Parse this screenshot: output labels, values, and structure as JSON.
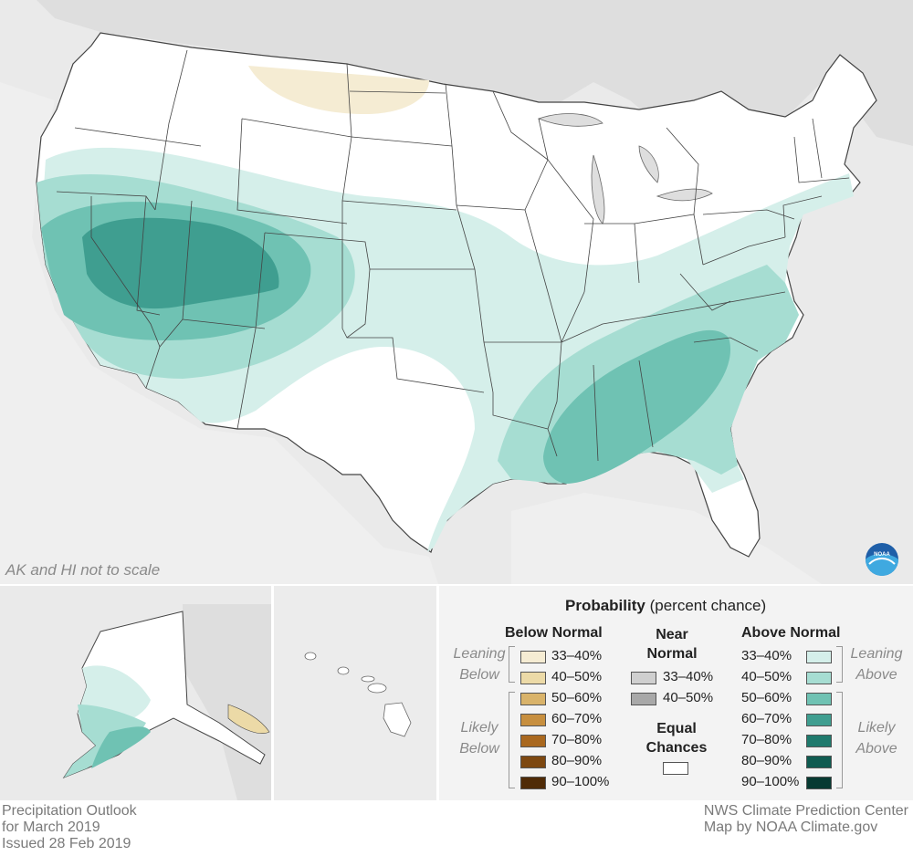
{
  "map_note": "AK and HI not to scale",
  "logo_text": "NOAA",
  "footer_left": [
    "Precipitation Outlook",
    "for March 2019",
    "Issued 28 Feb 2019"
  ],
  "footer_right": [
    "NWS Climate Prediction Center",
    "Map by NOAA Climate.gov"
  ],
  "legend": {
    "title_bold": "Probability",
    "title_rest": " (percent chance)",
    "below": {
      "heading": "Below Normal",
      "leaning_label": [
        "Leaning",
        "Below"
      ],
      "likely_label": [
        "Likely",
        "Below"
      ],
      "items": [
        {
          "label": "33–40%",
          "color": "#f5ecd3"
        },
        {
          "label": "40–50%",
          "color": "#ecdaa7"
        },
        {
          "label": "50–60%",
          "color": "#d9b36a"
        },
        {
          "label": "60–70%",
          "color": "#c78f3f"
        },
        {
          "label": "70–80%",
          "color": "#a9681f"
        },
        {
          "label": "80–90%",
          "color": "#7d4811"
        },
        {
          "label": "90–100%",
          "color": "#4f2b07"
        }
      ]
    },
    "near": {
      "heading": [
        "Near",
        "Normal"
      ],
      "items": [
        {
          "label": "33–40%",
          "color": "#cfcfcf"
        },
        {
          "label": "40–50%",
          "color": "#a8a8a8"
        }
      ],
      "equal_heading": [
        "Equal",
        "Chances"
      ],
      "equal_color": "#ffffff"
    },
    "above": {
      "heading": "Above Normal",
      "leaning_label": [
        "Leaning",
        "Above"
      ],
      "likely_label": [
        "Likely",
        "Above"
      ],
      "items": [
        {
          "label": "33–40%",
          "color": "#d5efea"
        },
        {
          "label": "40–50%",
          "color": "#a6ddd2"
        },
        {
          "label": "50–60%",
          "color": "#6fc2b3"
        },
        {
          "label": "60–70%",
          "color": "#3f9e90"
        },
        {
          "label": "70–80%",
          "color": "#1f7a6d"
        },
        {
          "label": "80–90%",
          "color": "#0f5b50"
        },
        {
          "label": "90–100%",
          "color": "#073a32"
        }
      ]
    }
  }
}
